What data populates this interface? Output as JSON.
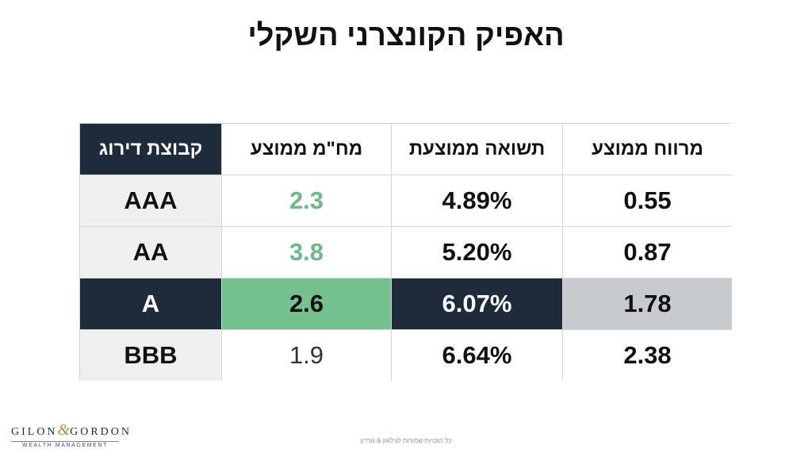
{
  "title": "האפיק הקונצרני השקלי",
  "table": {
    "headers": {
      "rating_group": "קבוצת דירוג",
      "avg_duration": "מח\"מ ממוצע",
      "avg_yield": "תשואה ממוצעת",
      "avg_spread": "מרווח ממוצע"
    },
    "rows": [
      {
        "rating": "AAA",
        "duration": "2.3",
        "yield": "4.89%",
        "spread": "0.55"
      },
      {
        "rating": "AA",
        "duration": "3.8",
        "yield": "5.20%",
        "spread": "0.87"
      },
      {
        "rating": "A",
        "duration": "2.6",
        "yield": "6.07%",
        "spread": "1.78"
      },
      {
        "rating": "BBB",
        "duration": "1.9",
        "yield": "6.64%",
        "spread": "2.38"
      }
    ]
  },
  "logo": {
    "left": "GILON",
    "amp": "&",
    "right": "GORDON",
    "tagline": "WEALTH MANAGEMENT"
  },
  "footer": "כל הזכויות שמורות לגילאון & גורדון",
  "colors": {
    "navy": "#1d2b3a",
    "green": "#74c08f",
    "green_text": "#6cb88a",
    "grey": "#c8cbce",
    "label_bg": "#efefef",
    "accent_gold": "#b58a3c"
  }
}
